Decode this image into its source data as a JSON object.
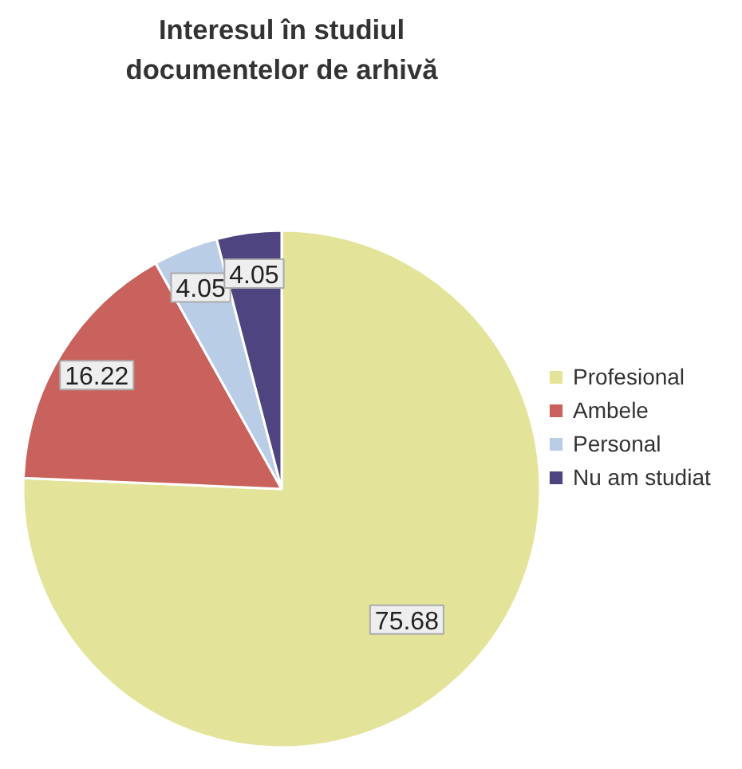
{
  "chart_data": {
    "type": "pie",
    "title": "Interesul în studiul\ndocumentelor de arhivă",
    "categories": [
      "Profesional",
      "Ambele",
      "Personal",
      "Nu am studiat"
    ],
    "values": [
      75.68,
      16.22,
      4.05,
      4.05
    ],
    "colors": [
      "#e3e39a",
      "#c9625c",
      "#b9cde6",
      "#4e4580"
    ],
    "data_labels": true,
    "legend": "right"
  }
}
